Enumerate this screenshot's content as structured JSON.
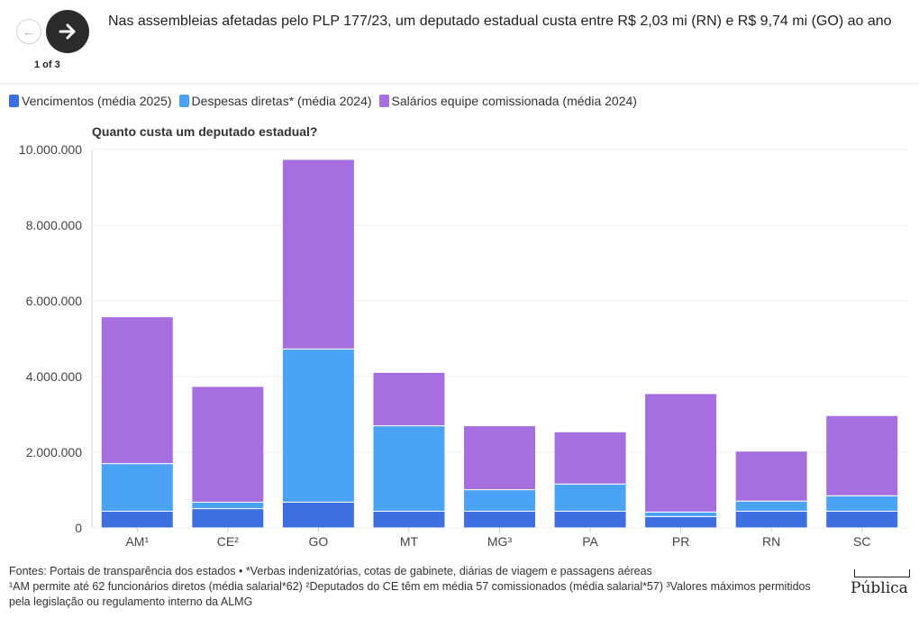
{
  "nav": {
    "prev_icon": "arrow-left-icon",
    "next_icon": "arrow-right-icon",
    "pager": "1 of 3"
  },
  "headline": "Nas assembleias afetadas pelo PLP 177/23, um deputado estadual custa entre R$ 2,03 mi (RN) e R$ 9,74 mi (GO) ao ano",
  "legend": [
    {
      "label": "Vencimentos (média 2025)",
      "color": "#3d6fe0"
    },
    {
      "label": "Despesas diretas* (média 2024)",
      "color": "#4aa3f7"
    },
    {
      "label": "Salários equipe comissionada (média 2024)",
      "color": "#a66fe0"
    }
  ],
  "chart_data": {
    "type": "bar",
    "stacked": true,
    "subtitle": "Quanto custa um deputado estadual?",
    "categories": [
      "AM¹",
      "CE²",
      "GO",
      "MT",
      "MG³",
      "PA",
      "PR",
      "RN",
      "SC"
    ],
    "series": [
      {
        "name": "Vencimentos (média 2025)",
        "color": "#3d6fe0",
        "values": [
          440000,
          510000,
          680000,
          440000,
          440000,
          440000,
          300000,
          440000,
          440000
        ]
      },
      {
        "name": "Despesas diretas* (média 2024)",
        "color": "#4aa3f7",
        "values": [
          1260000,
          170000,
          4050000,
          2260000,
          570000,
          720000,
          120000,
          270000,
          410000
        ]
      },
      {
        "name": "Salários equipe comissionada (média 2024)",
        "color": "#a66fe0",
        "values": [
          3880000,
          3060000,
          5010000,
          1410000,
          1690000,
          1380000,
          3130000,
          1320000,
          2120000
        ]
      }
    ],
    "ylim": [
      0,
      10000000
    ],
    "yticks": [
      0,
      2000000,
      4000000,
      6000000,
      8000000,
      10000000
    ],
    "ytick_labels": [
      "0",
      "2.000.000",
      "4.000.000",
      "6.000.000",
      "8.000.000",
      "10.000.000"
    ],
    "grid": true
  },
  "footer": {
    "line1": "Fontes: Portais de transparência dos estados • *Verbas indenizatórias, cotas de gabinete, diárias de viagem e passagens aéreas",
    "line2": "¹AM permite até 62 funcionários diretos (média salarial*62) ²Deputados do CE têm em média 57 comissionados (média salarial*57) ³Valores máximos permitidos pela legislação ou regulamento interno da ALMG"
  },
  "brand": "Pública"
}
